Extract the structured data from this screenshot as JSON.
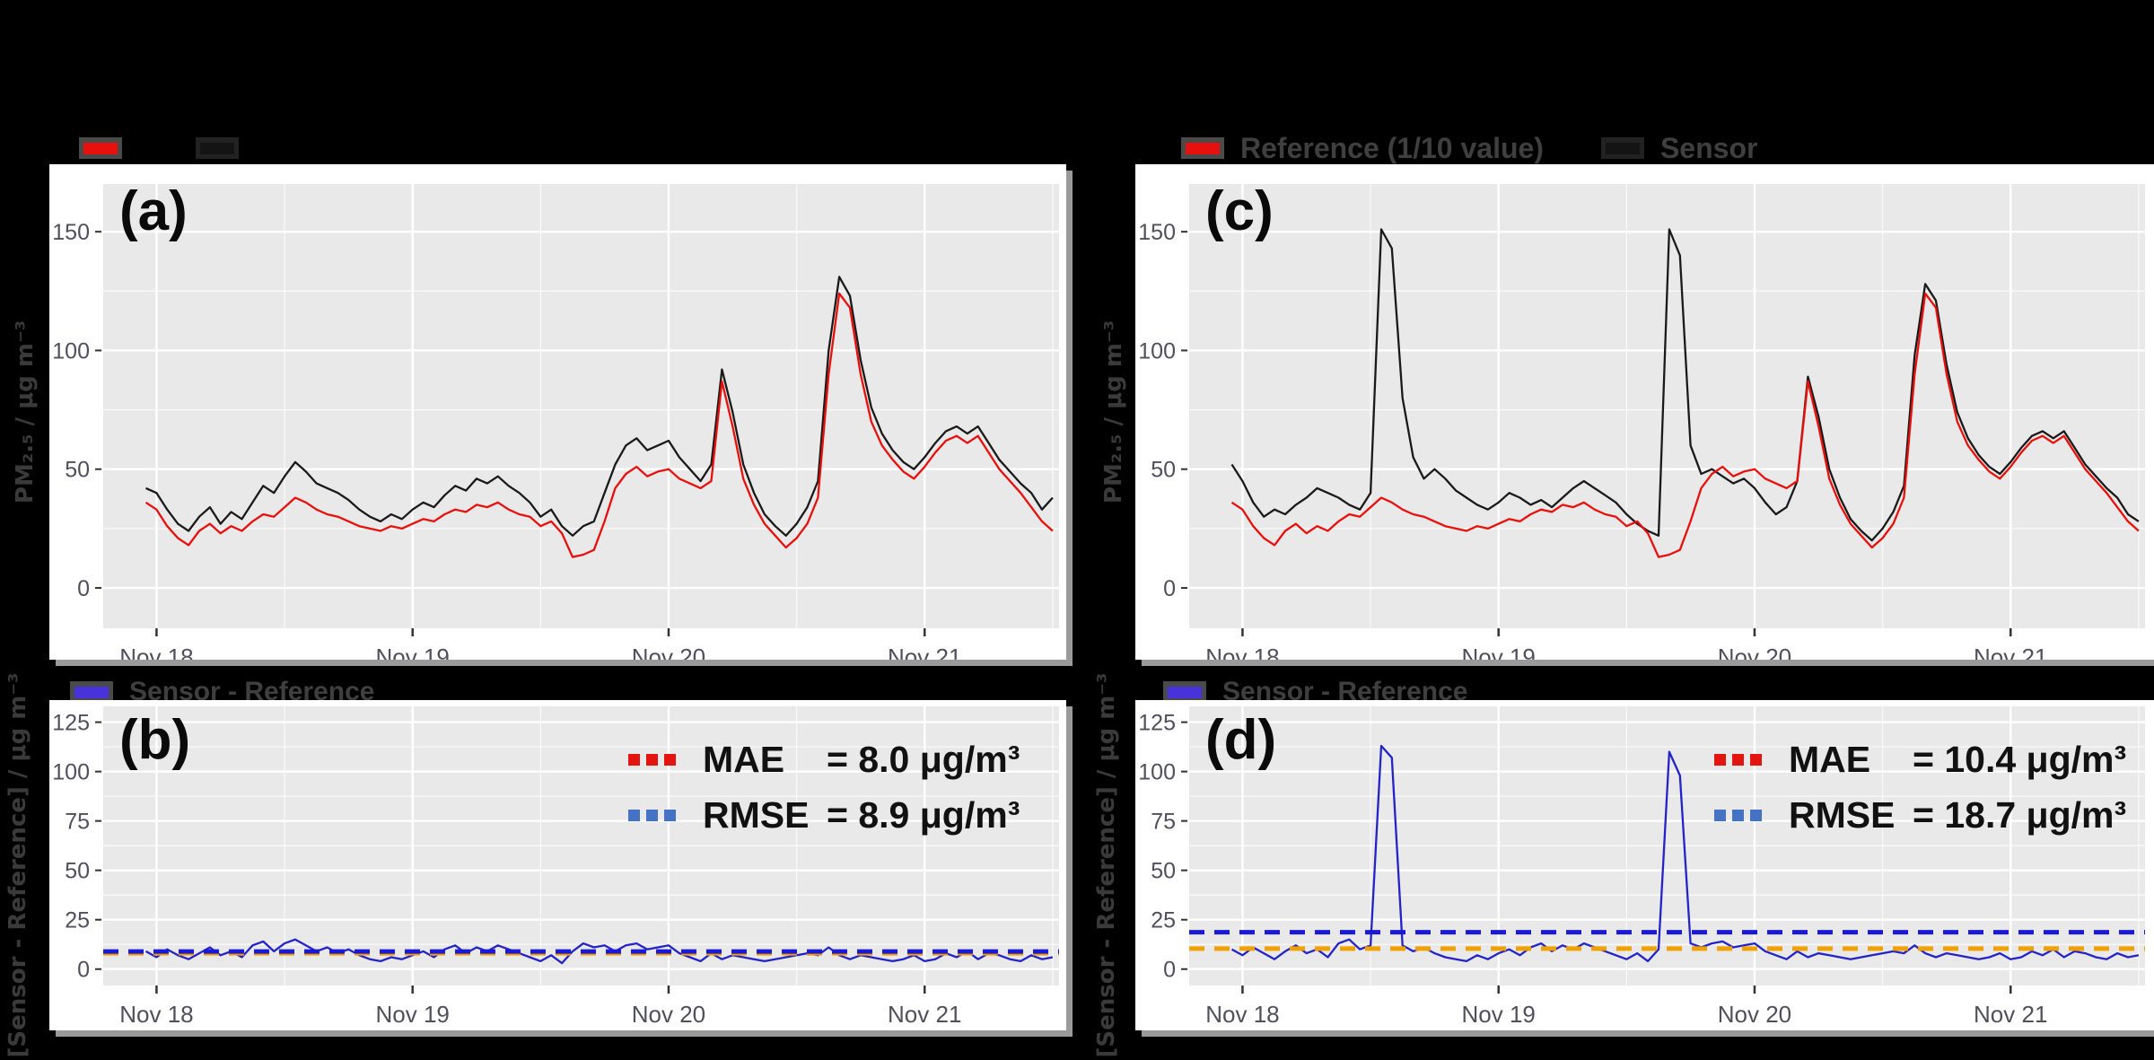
{
  "colors": {
    "page_background": "#000000",
    "card_background": "#ffffff",
    "plot_background": "#e9e9e9",
    "gridline": "#ffffff",
    "tick_text": "#50505c",
    "sensor_line": "#1a1a1a",
    "reference_line": "#e8100c",
    "difference_line": "#2323c8",
    "mae_dash_line": "#f2a100",
    "rmse_dash_line": "#1a1ad6",
    "legend_red_swatch": "#e8100c",
    "legend_black_swatch": "#141414",
    "legend_blue_swatch": "#4733d9",
    "mae_dots": "#e21510",
    "rmse_dots": "#4472c4"
  },
  "chart_data": [
    {
      "id": "a",
      "type": "line",
      "panel_label": "(a)",
      "ylabel": "PM₂.₅ / μg m⁻³",
      "x_tick_labels": [
        "Nov 18",
        "Nov 19",
        "Nov 20",
        "Nov 21"
      ],
      "x_tick_hours": [
        1,
        25,
        49,
        73
      ],
      "xlim": [
        -4,
        85.6
      ],
      "ylim": [
        -17,
        170.1
      ],
      "y_ticks": [
        0,
        50,
        100,
        150
      ],
      "y_minor": [
        25,
        75,
        125
      ],
      "x_minor": [
        13,
        37,
        61,
        85
      ],
      "legend": [
        {
          "label": "",
          "swatch_color": "#e8100c"
        },
        {
          "label": "",
          "swatch_color": "#141414"
        }
      ],
      "series": [
        {
          "name": "Sensor",
          "color": "#1a1a1a",
          "values": [
            42,
            40,
            33,
            27,
            24,
            30,
            34,
            27,
            32,
            29,
            36,
            43,
            40,
            47,
            53,
            49,
            44,
            42,
            40,
            37,
            33,
            30,
            28,
            31,
            29,
            33,
            36,
            34,
            39,
            43,
            41,
            46,
            44,
            47,
            43,
            40,
            36,
            30,
            33,
            26,
            22,
            26,
            28,
            40,
            52,
            60,
            63,
            58,
            60,
            62,
            55,
            50,
            45,
            52,
            92,
            74,
            52,
            40,
            31,
            26,
            22,
            27,
            34,
            45,
            100,
            131,
            123,
            96,
            76,
            65,
            58,
            53,
            50,
            55,
            61,
            66,
            68,
            65,
            68,
            61,
            54,
            49,
            44,
            40,
            33,
            38
          ]
        },
        {
          "name": "Reference",
          "color": "#e8100c",
          "values": [
            36,
            33,
            26,
            21,
            18,
            24,
            27,
            23,
            26,
            24,
            28,
            31,
            30,
            34,
            38,
            36,
            33,
            31,
            30,
            28,
            26,
            25,
            24,
            26,
            25,
            27,
            29,
            28,
            31,
            33,
            32,
            35,
            34,
            36,
            33,
            31,
            30,
            26,
            28,
            23,
            13,
            14,
            16,
            28,
            42,
            48,
            51,
            47,
            49,
            50,
            46,
            44,
            42,
            45,
            87,
            68,
            46,
            35,
            27,
            22,
            17,
            21,
            27,
            38,
            90,
            124,
            118,
            90,
            70,
            60,
            54,
            49,
            46,
            51,
            57,
            62,
            64,
            61,
            64,
            57,
            50,
            45,
            40,
            34,
            28,
            24
          ]
        }
      ]
    },
    {
      "id": "b",
      "type": "line",
      "panel_label": "(b)",
      "ylabel": "[Sensor - Reference] / μg m⁻³",
      "x_tick_labels": [
        "Nov 18",
        "Nov 19",
        "Nov 20",
        "Nov 21"
      ],
      "x_tick_hours": [
        1,
        25,
        49,
        73
      ],
      "xlim": [
        -4,
        85.6
      ],
      "ylim": [
        -8.3,
        133
      ],
      "y_ticks": [
        0,
        25,
        50,
        75,
        100,
        125
      ],
      "y_minor": [
        12.5,
        37.5,
        62.5,
        87.5,
        112.5
      ],
      "x_minor": [
        13,
        37,
        61,
        85
      ],
      "legend": [
        {
          "label": "Sensor - Reference",
          "swatch_color": "#4733d9"
        }
      ],
      "series": [
        {
          "name": "Sensor - Reference",
          "color": "#2323c8",
          "values": [
            9,
            6,
            10,
            7,
            5,
            8,
            11,
            7,
            9,
            6,
            12,
            14,
            9,
            13,
            15,
            12,
            9,
            11,
            8,
            10,
            7,
            5,
            4,
            6,
            5,
            7,
            9,
            6,
            10,
            12,
            8,
            11,
            9,
            12,
            10,
            8,
            6,
            4,
            7,
            3,
            9,
            13,
            11,
            12,
            9,
            12,
            13,
            10,
            11,
            12,
            8,
            6,
            4,
            8,
            5,
            7,
            6,
            5,
            4,
            5,
            6,
            7,
            8,
            7,
            11,
            7,
            5,
            7,
            6,
            5,
            4,
            5,
            7,
            4,
            5,
            8,
            6,
            9,
            5,
            8,
            7,
            5,
            4,
            7,
            5,
            6
          ]
        }
      ],
      "hlines": [
        {
          "name": "MAE",
          "value": 8.0,
          "color": "#f2a100"
        },
        {
          "name": "RMSE",
          "value": 8.9,
          "color": "#1a1ad6"
        }
      ],
      "annotations": [
        {
          "metric": "MAE",
          "value_text": "= 8.0 μg/m³",
          "dots_color": "#e21510"
        },
        {
          "metric": "RMSE",
          "value_text": "= 8.9 μg/m³",
          "dots_color": "#4472c4"
        }
      ]
    },
    {
      "id": "c",
      "type": "line",
      "panel_label": "(c)",
      "ylabel": "PM₂.₅ / μg m⁻³",
      "x_tick_labels": [
        "Nov 18",
        "Nov 19",
        "Nov 20",
        "Nov 21"
      ],
      "x_tick_hours": [
        1,
        25,
        49,
        73
      ],
      "xlim": [
        -4,
        85.6
      ],
      "ylim": [
        -17,
        170.1
      ],
      "y_ticks": [
        0,
        50,
        100,
        150
      ],
      "y_minor": [
        25,
        75,
        125
      ],
      "x_minor": [
        13,
        37,
        61,
        85
      ],
      "legend": [
        {
          "label": "Reference (1/10 value)",
          "swatch_color": "#e8100c"
        },
        {
          "label": "Sensor",
          "swatch_color": "#141414"
        }
      ],
      "series": [
        {
          "name": "Sensor",
          "color": "#1a1a1a",
          "values": [
            52,
            45,
            36,
            30,
            33,
            31,
            35,
            38,
            42,
            40,
            38,
            35,
            33,
            40,
            151,
            143,
            80,
            55,
            46,
            50,
            46,
            41,
            38,
            35,
            33,
            36,
            40,
            38,
            35,
            37,
            34,
            38,
            42,
            45,
            42,
            39,
            36,
            31,
            27,
            24,
            22,
            151,
            140,
            60,
            48,
            50,
            47,
            44,
            46,
            42,
            36,
            31,
            34,
            45,
            89,
            72,
            50,
            38,
            29,
            24,
            20,
            25,
            32,
            43,
            98,
            128,
            121,
            94,
            74,
            63,
            56,
            51,
            48,
            53,
            59,
            64,
            66,
            63,
            66,
            59,
            52,
            47,
            42,
            38,
            31,
            28
          ]
        },
        {
          "name": "Reference (1/10 value)",
          "color": "#e8100c",
          "values": [
            36,
            33,
            26,
            21,
            18,
            24,
            27,
            23,
            26,
            24,
            28,
            31,
            30,
            34,
            38,
            36,
            33,
            31,
            30,
            28,
            26,
            25,
            24,
            26,
            25,
            27,
            29,
            28,
            31,
            33,
            32,
            35,
            34,
            36,
            33,
            31,
            30,
            26,
            28,
            23,
            13,
            14,
            16,
            28,
            42,
            48,
            51,
            47,
            49,
            50,
            46,
            44,
            42,
            45,
            87,
            68,
            46,
            35,
            27,
            22,
            17,
            21,
            27,
            38,
            90,
            124,
            118,
            90,
            70,
            60,
            54,
            49,
            46,
            51,
            57,
            62,
            64,
            61,
            64,
            57,
            50,
            45,
            40,
            34,
            28,
            24
          ]
        }
      ]
    },
    {
      "id": "d",
      "type": "line",
      "panel_label": "(d)",
      "ylabel": "[Sensor - Reference] / μg m⁻³",
      "x_tick_labels": [
        "Nov 18",
        "Nov 19",
        "Nov 20",
        "Nov 21"
      ],
      "x_tick_hours": [
        1,
        25,
        49,
        73
      ],
      "xlim": [
        -4,
        85.6
      ],
      "ylim": [
        -8.3,
        133
      ],
      "y_ticks": [
        0,
        25,
        50,
        75,
        100,
        125
      ],
      "y_minor": [
        12.5,
        37.5,
        62.5,
        87.5,
        112.5
      ],
      "x_minor": [
        13,
        37,
        61,
        85
      ],
      "legend": [
        {
          "label": "Sensor - Reference",
          "swatch_color": "#4733d9"
        }
      ],
      "series": [
        {
          "name": "Sensor - Reference",
          "color": "#2323c8",
          "values": [
            10,
            7,
            11,
            8,
            5,
            9,
            12,
            8,
            10,
            6,
            13,
            15,
            10,
            12,
            113,
            107,
            12,
            9,
            11,
            8,
            6,
            5,
            4,
            7,
            5,
            8,
            10,
            7,
            11,
            13,
            9,
            12,
            10,
            13,
            11,
            9,
            7,
            5,
            8,
            4,
            10,
            110,
            98,
            13,
            11,
            13,
            14,
            11,
            12,
            13,
            9,
            7,
            5,
            9,
            6,
            8,
            7,
            6,
            5,
            6,
            7,
            8,
            9,
            8,
            12,
            8,
            6,
            8,
            7,
            6,
            5,
            6,
            8,
            5,
            6,
            9,
            7,
            10,
            6,
            9,
            8,
            6,
            5,
            8,
            6,
            7
          ]
        }
      ],
      "hlines": [
        {
          "name": "MAE",
          "value": 10.4,
          "color": "#f2a100"
        },
        {
          "name": "RMSE",
          "value": 18.7,
          "color": "#1a1ad6"
        }
      ],
      "annotations": [
        {
          "metric": "MAE",
          "value_text": "= 10.4 μg/m³",
          "dots_color": "#e21510"
        },
        {
          "metric": "RMSE",
          "value_text": "= 18.7 μg/m³",
          "dots_color": "#4472c4"
        }
      ]
    }
  ]
}
